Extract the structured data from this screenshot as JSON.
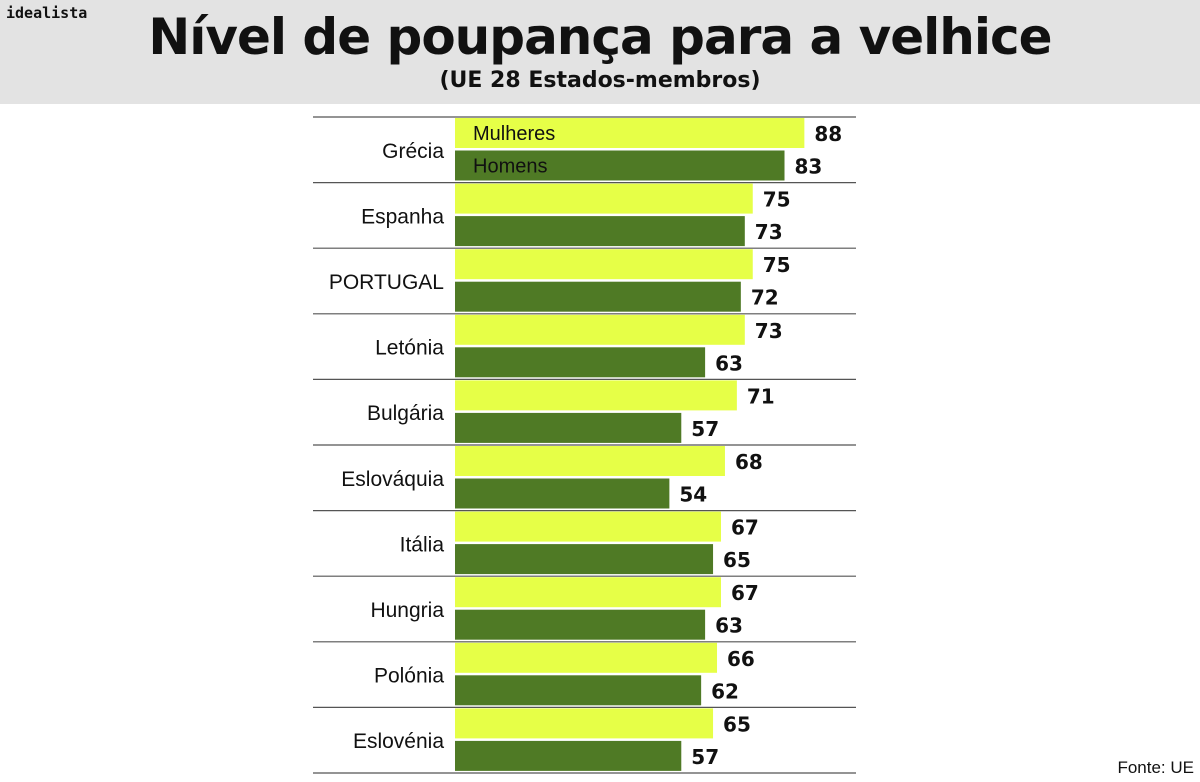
{
  "header": {
    "brand": "idealista",
    "title": "Nível de poupança para a velhice",
    "subtitle": "(UE 28 Estados-membros)"
  },
  "source": "Fonte: UE",
  "colors": {
    "mulheres": "#e6ff47",
    "homens": "#4f7a25",
    "header_bg": "#e3e3e3",
    "line": "#555555"
  },
  "chart_data": {
    "type": "bar",
    "orientation": "horizontal",
    "categories": [
      "Grécia",
      "Espanha",
      "PORTUGAL",
      "Letónia",
      "Bulgária",
      "Eslováquia",
      "Itália",
      "Hungria",
      "Polónia",
      "Eslovénia"
    ],
    "series": [
      {
        "name": "Mulheres",
        "values": [
          88,
          75,
          75,
          73,
          71,
          68,
          67,
          67,
          66,
          65
        ]
      },
      {
        "name": "Homens",
        "values": [
          83,
          73,
          72,
          63,
          57,
          54,
          65,
          63,
          62,
          57
        ]
      }
    ],
    "legend": "inside-first-category",
    "xlim": [
      0,
      100
    ]
  }
}
